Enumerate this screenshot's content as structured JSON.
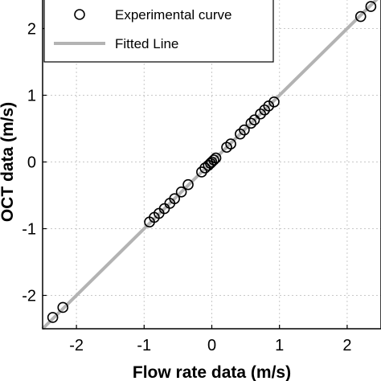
{
  "chart_data": {
    "type": "scatter",
    "xlabel": "Flow rate data (m/s)",
    "ylabel": "OCT data  (m/s)",
    "xlim": [
      -2.5,
      2.5
    ],
    "ylim": [
      -2.5,
      2.5
    ],
    "grid": true,
    "legend_position": "top-left",
    "x_ticks": [
      "-2",
      "-1",
      "0",
      "1",
      "2"
    ],
    "y_ticks": [
      "-2",
      "-1",
      "0",
      "1",
      "2"
    ],
    "series": [
      {
        "name": "Experimental curve",
        "marker": "open-circle",
        "color": "#000000",
        "points": [
          [
            -2.35,
            -2.33
          ],
          [
            -2.2,
            -2.18
          ],
          [
            -0.92,
            -0.9
          ],
          [
            -0.85,
            -0.83
          ],
          [
            -0.78,
            -0.77
          ],
          [
            -0.7,
            -0.7
          ],
          [
            -0.62,
            -0.62
          ],
          [
            -0.55,
            -0.55
          ],
          [
            -0.45,
            -0.45
          ],
          [
            -0.35,
            -0.34
          ],
          [
            -0.15,
            -0.15
          ],
          [
            -0.1,
            -0.09
          ],
          [
            -0.05,
            -0.05
          ],
          [
            -0.02,
            -0.02
          ],
          [
            0.0,
            0.0
          ],
          [
            0.03,
            0.03
          ],
          [
            0.06,
            0.06
          ],
          [
            0.22,
            0.22
          ],
          [
            0.28,
            0.27
          ],
          [
            0.42,
            0.42
          ],
          [
            0.48,
            0.48
          ],
          [
            0.58,
            0.58
          ],
          [
            0.63,
            0.63
          ],
          [
            0.72,
            0.72
          ],
          [
            0.78,
            0.78
          ],
          [
            0.84,
            0.84
          ],
          [
            0.92,
            0.9
          ],
          [
            2.2,
            2.18
          ],
          [
            2.35,
            2.33
          ]
        ]
      },
      {
        "name": "Fitted Line",
        "type": "line",
        "color": "#b3b3b3",
        "x": [
          -2.5,
          2.5
        ],
        "y": [
          -2.5,
          2.5
        ]
      }
    ]
  }
}
